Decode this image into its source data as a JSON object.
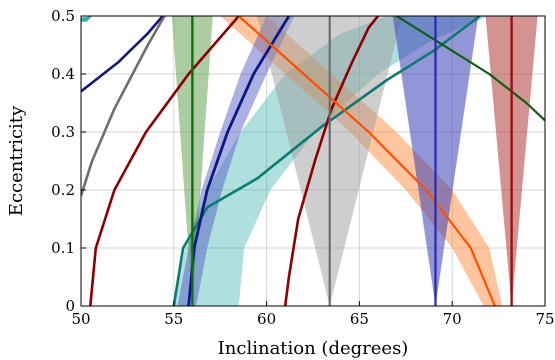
{
  "chart_data": {
    "type": "line",
    "xlabel": "Inclination (degrees)",
    "ylabel": "Eccentricity",
    "xlim": [
      50,
      75
    ],
    "ylim": [
      0,
      0.5
    ],
    "x_ticks": [
      "50",
      "55",
      "60",
      "65",
      "70",
      "75"
    ],
    "y_ticks": [
      "0",
      "0.1",
      "0.2",
      "0.3",
      "0.4",
      "0.5"
    ],
    "grid": true,
    "bands": [
      {
        "color": "#1AA6A0",
        "opacity": 0.35,
        "upper": [
          [
            55.0,
            0.0
          ],
          [
            55.6,
            0.1
          ],
          [
            56.8,
            0.2
          ],
          [
            58.6,
            0.3
          ],
          [
            61.0,
            0.4
          ],
          [
            64.0,
            0.47
          ],
          [
            66.5,
            0.5
          ]
        ],
        "lower": [
          [
            58.5,
            0.0
          ],
          [
            58.8,
            0.1
          ],
          [
            60.2,
            0.2
          ],
          [
            62.6,
            0.3
          ],
          [
            66.0,
            0.4
          ],
          [
            69.0,
            0.46
          ],
          [
            72.0,
            0.5
          ]
        ]
      },
      {
        "color": "#FF7F2A",
        "opacity": 0.45,
        "upper": [
          [
            57.5,
            0.5
          ],
          [
            61.0,
            0.4
          ],
          [
            64.5,
            0.3
          ],
          [
            67.5,
            0.2
          ],
          [
            70.0,
            0.1
          ],
          [
            71.7,
            0.0
          ]
        ],
        "lower": [
          [
            60.0,
            0.5
          ],
          [
            63.5,
            0.4
          ],
          [
            67.0,
            0.3
          ],
          [
            70.0,
            0.2
          ],
          [
            72.0,
            0.1
          ],
          [
            72.7,
            0.0
          ]
        ]
      },
      {
        "color": "#4A4FBF",
        "opacity": 0.45,
        "upper": [
          [
            55.2,
            0.0
          ],
          [
            55.8,
            0.1
          ],
          [
            56.5,
            0.2
          ],
          [
            57.5,
            0.3
          ],
          [
            58.6,
            0.4
          ],
          [
            60.0,
            0.5
          ]
        ],
        "lower": [
          [
            56.2,
            0.0
          ],
          [
            56.8,
            0.1
          ],
          [
            57.6,
            0.2
          ],
          [
            58.6,
            0.3
          ],
          [
            60.0,
            0.4
          ],
          [
            61.5,
            0.5
          ]
        ]
      },
      {
        "color": "#9E9E9E",
        "opacity": 0.5,
        "upper": [
          [
            59.5,
            0.5
          ],
          [
            63.4,
            0.0
          ]
        ],
        "lower": [
          [
            67.3,
            0.5
          ],
          [
            63.4,
            0.0
          ]
        ]
      },
      {
        "color": "#3A3FB5",
        "opacity": 0.55,
        "upper": [
          [
            66.8,
            0.5
          ],
          [
            69.1,
            0.0
          ]
        ],
        "lower": [
          [
            71.4,
            0.5
          ],
          [
            69.1,
            0.0
          ]
        ]
      },
      {
        "color": "#5A9A44",
        "opacity": 0.5,
        "upper": [
          [
            54.9,
            0.5
          ],
          [
            56.0,
            0.0
          ]
        ],
        "lower": [
          [
            57.1,
            0.5
          ],
          [
            56.0,
            0.0
          ]
        ]
      },
      {
        "color": "#B03A3A",
        "opacity": 0.55,
        "upper": [
          [
            71.8,
            0.5
          ],
          [
            73.2,
            0.0
          ]
        ],
        "lower": [
          [
            74.6,
            0.5
          ],
          [
            73.2,
            0.0
          ]
        ]
      },
      {
        "color": "#1AA6A0",
        "opacity": 0.9,
        "upper": [
          [
            50.0,
            0.497
          ],
          [
            50.6,
            0.5
          ]
        ],
        "lower": [
          [
            50.0,
            0.49
          ],
          [
            50.3,
            0.49
          ]
        ]
      }
    ],
    "series": [
      {
        "color": "#0D1785",
        "width": 2.6,
        "points": [
          [
            50.0,
            0.37
          ],
          [
            52.0,
            0.42
          ],
          [
            53.6,
            0.47
          ],
          [
            54.4,
            0.5
          ]
        ]
      },
      {
        "color": "#6E6E6E",
        "width": 2.6,
        "points": [
          [
            50.0,
            0.19
          ],
          [
            50.6,
            0.25
          ],
          [
            51.8,
            0.34
          ],
          [
            53.6,
            0.45
          ],
          [
            54.5,
            0.5
          ]
        ]
      },
      {
        "color": "#8B0000",
        "width": 2.6,
        "points": [
          [
            50.5,
            0.0
          ],
          [
            50.8,
            0.1
          ],
          [
            51.8,
            0.2
          ],
          [
            53.5,
            0.3
          ],
          [
            55.8,
            0.4
          ],
          [
            58.5,
            0.5
          ]
        ]
      },
      {
        "color": "#0A7A72",
        "width": 2.6,
        "points": [
          [
            55.0,
            0.0
          ],
          [
            55.5,
            0.1
          ],
          [
            56.8,
            0.17
          ],
          [
            59.5,
            0.22
          ],
          [
            63.0,
            0.31
          ],
          [
            66.5,
            0.39
          ],
          [
            69.0,
            0.44
          ],
          [
            71.5,
            0.5
          ]
        ]
      },
      {
        "color": "#0D1785",
        "width": 2.8,
        "points": [
          [
            55.8,
            0.0
          ],
          [
            56.1,
            0.1
          ],
          [
            56.8,
            0.2
          ],
          [
            57.9,
            0.3
          ],
          [
            59.3,
            0.4
          ],
          [
            61.2,
            0.5
          ]
        ]
      },
      {
        "color": "#8B0000",
        "width": 2.6,
        "points": [
          [
            61.0,
            0.0
          ],
          [
            61.2,
            0.05
          ],
          [
            61.7,
            0.15
          ],
          [
            62.6,
            0.25
          ],
          [
            63.5,
            0.34
          ],
          [
            64.6,
            0.42
          ],
          [
            65.5,
            0.48
          ],
          [
            66.0,
            0.5
          ]
        ]
      },
      {
        "color": "#FF4F00",
        "width": 2.2,
        "points": [
          [
            58.5,
            0.5
          ],
          [
            62.0,
            0.4
          ],
          [
            65.5,
            0.3
          ],
          [
            68.6,
            0.2
          ],
          [
            71.0,
            0.1
          ],
          [
            72.3,
            0.0
          ]
        ]
      },
      {
        "color": "#0F5E0F",
        "width": 2.2,
        "points": [
          [
            67.0,
            0.5
          ],
          [
            72.0,
            0.4
          ],
          [
            74.0,
            0.35
          ],
          [
            75.0,
            0.32
          ]
        ]
      },
      {
        "color": "#6E6E6E",
        "width": 2.2,
        "points": [
          [
            63.4,
            0.0
          ],
          [
            63.4,
            0.5
          ]
        ]
      },
      {
        "color": "#2828B0",
        "width": 2.2,
        "points": [
          [
            69.1,
            0.0
          ],
          [
            69.1,
            0.5
          ]
        ]
      },
      {
        "color": "#0F6E0F",
        "width": 2.4,
        "points": [
          [
            56.0,
            0.0
          ],
          [
            56.0,
            0.5
          ]
        ]
      },
      {
        "color": "#9B1010",
        "width": 2.4,
        "points": [
          [
            73.2,
            0.0
          ],
          [
            73.2,
            0.5
          ]
        ]
      }
    ]
  }
}
